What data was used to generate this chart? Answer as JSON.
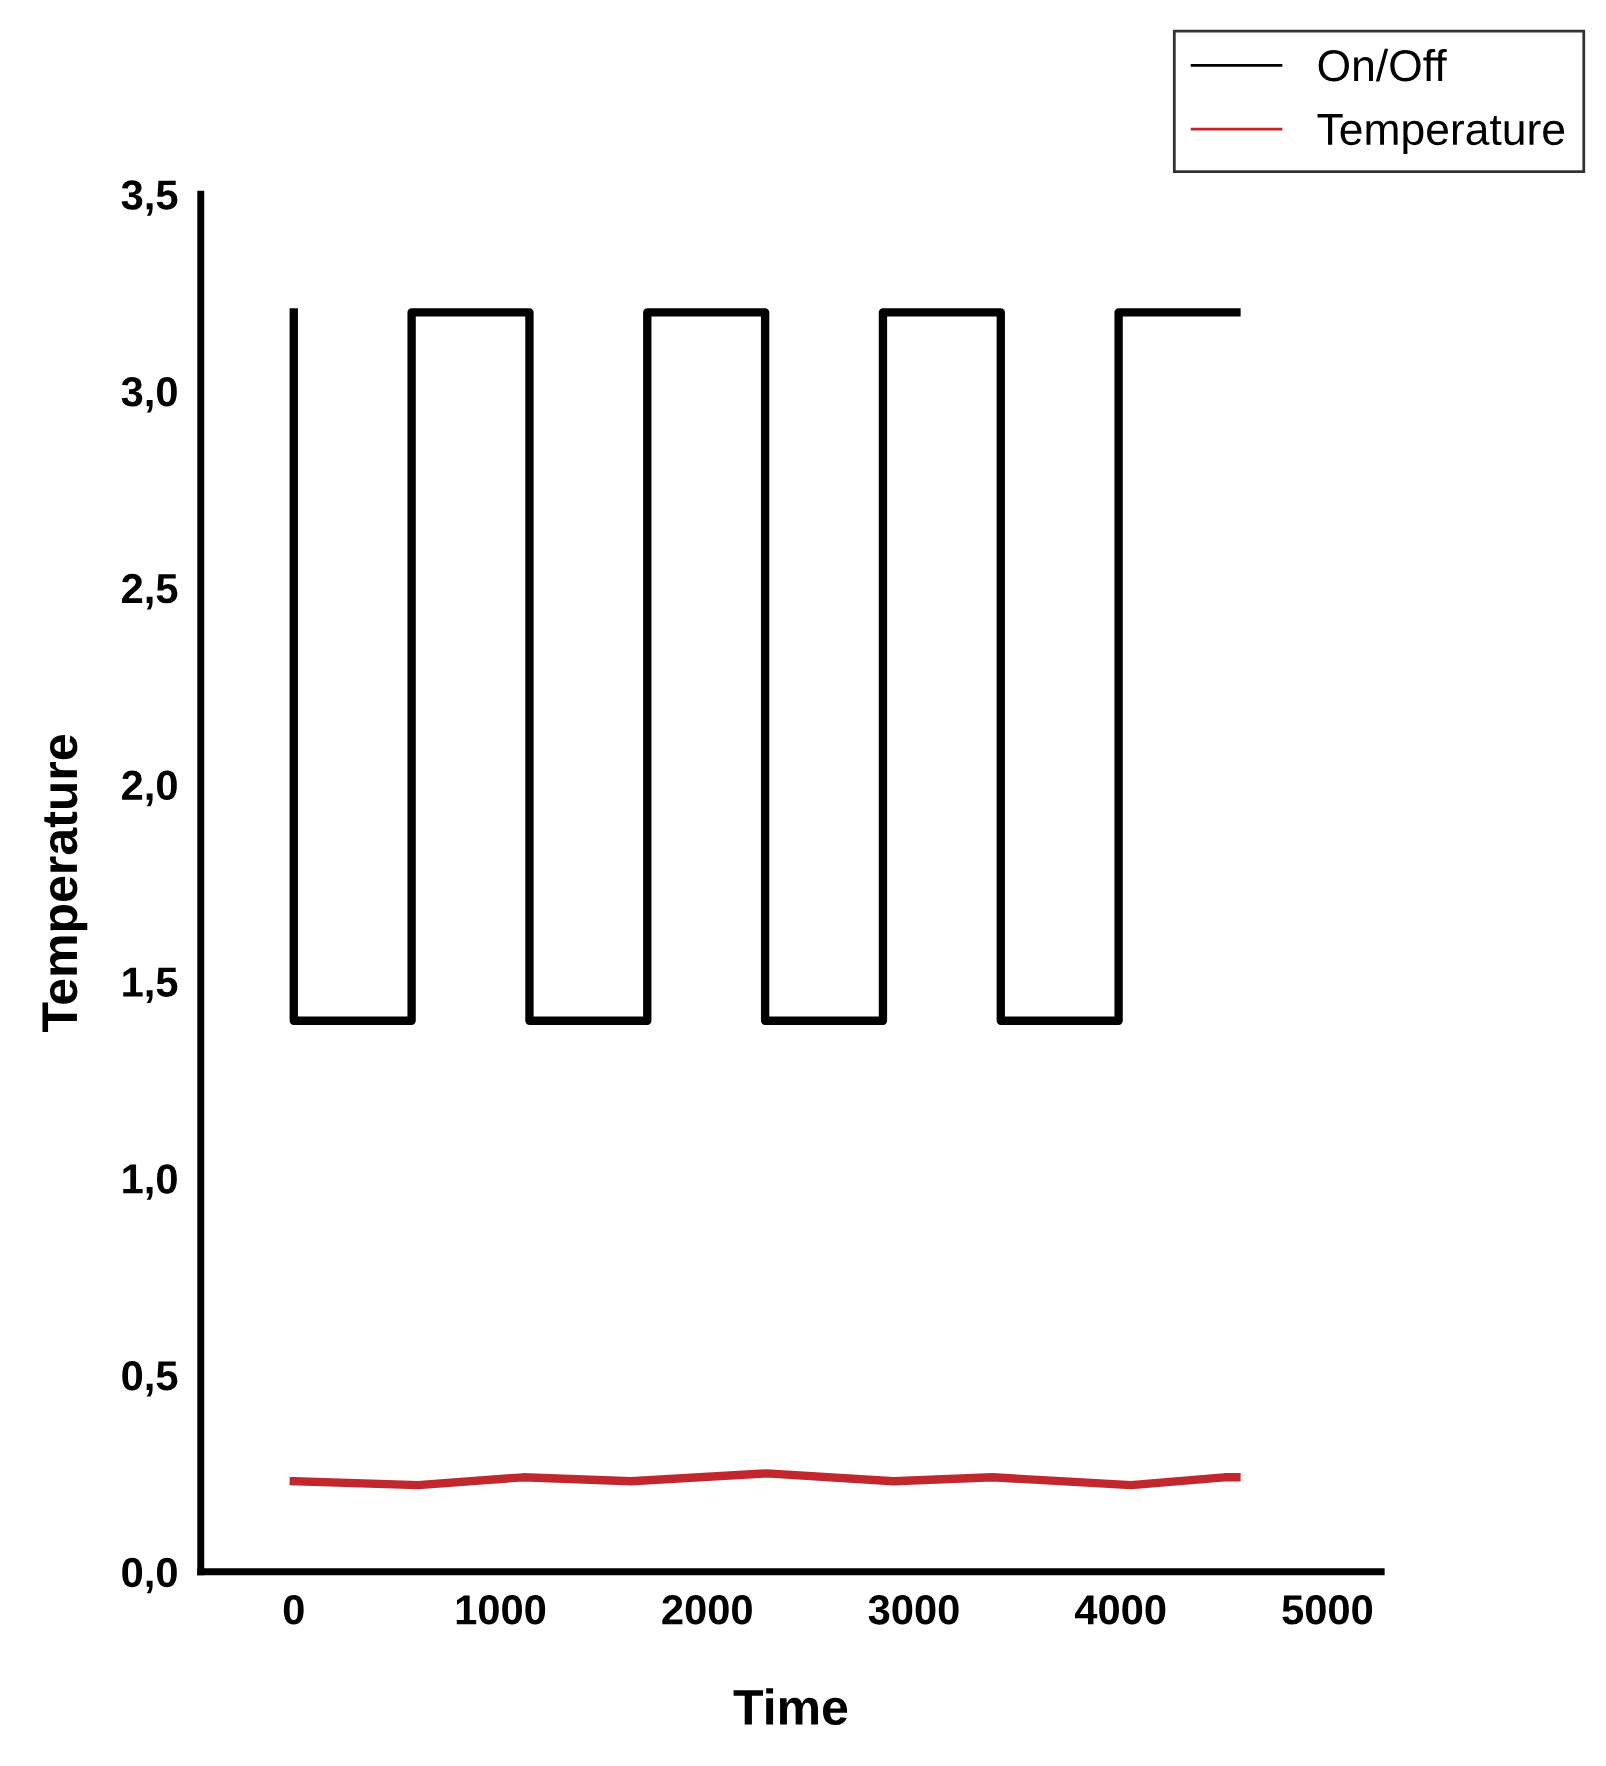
{
  "chart_data": {
    "type": "line",
    "xlabel": "Time",
    "ylabel": "Temperature",
    "series": [
      {
        "name": "On/Off",
        "type": "step",
        "color": "#000000",
        "x": [
          0,
          0,
          570,
          1140,
          1710,
          2280,
          2850,
          3420,
          3990,
          4560
        ],
        "values": [
          3.2,
          1.4,
          3.2,
          1.4,
          3.2,
          1.4,
          3.2,
          1.4,
          3.2,
          3.2
        ]
      },
      {
        "name": "Temperature",
        "color": "#c0282d",
        "x": [
          0,
          600,
          1110,
          1630,
          2290,
          2900,
          3380,
          4050,
          4500,
          4560
        ],
        "values": [
          0.23,
          0.22,
          0.24,
          0.23,
          0.25,
          0.23,
          0.24,
          0.22,
          0.24,
          0.24
        ]
      }
    ],
    "xlim": [
      -450,
      5260
    ],
    "ylim": [
      0,
      3.5
    ],
    "xticks": [
      0,
      1000,
      2000,
      3000,
      4000,
      5000
    ],
    "yticks": [
      {
        "value": 0,
        "label": "0,0"
      },
      {
        "value": 0.5,
        "label": "0,5"
      },
      {
        "value": 1,
        "label": "1,0"
      },
      {
        "value": 1.5,
        "label": "1,5"
      },
      {
        "value": 2,
        "label": "2,0"
      },
      {
        "value": 2.5,
        "label": "2,5"
      },
      {
        "value": 3,
        "label": "3,0"
      },
      {
        "value": 3.5,
        "label": "3,5"
      }
    ],
    "grid": false,
    "legend": "top right"
  }
}
